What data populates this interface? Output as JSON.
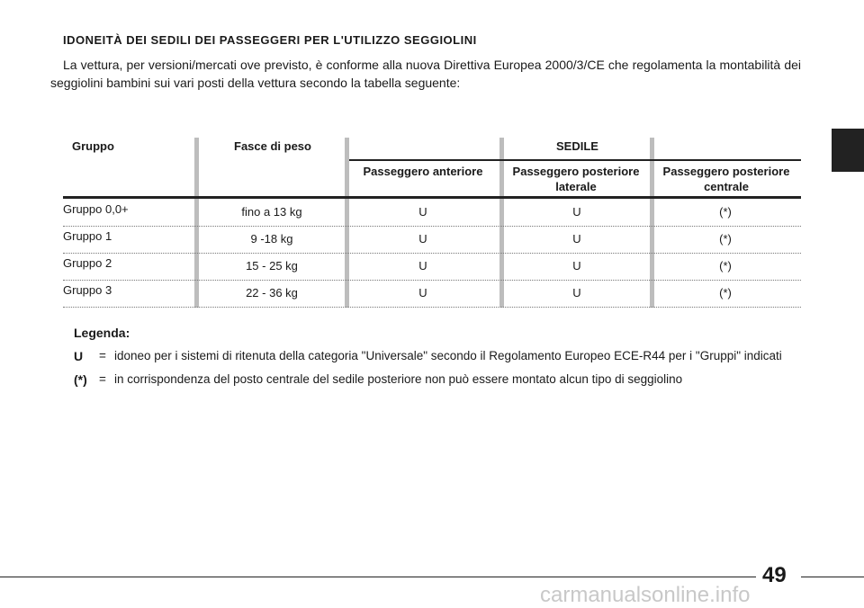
{
  "header": {
    "title": "IDONEITÀ DEI SEDILI DEI PASSEGGERI PER L'UTILIZZO SEGGIOLINI"
  },
  "intro": "La vettura, per versioni/mercati ove previsto, è conforme alla nuova Direttiva Europea 2000/3/CE che regolamenta la montabilità dei seggiolini bambini sui vari posti della vettura secondo la tabella seguente:",
  "table": {
    "columns": [
      "Gruppo",
      "Fasce di peso"
    ],
    "group_header": "SEDILE",
    "subcolumns": [
      "Passeggero anteriore",
      "Passeggero posteriore laterale",
      "Passeggero posteriore centrale"
    ],
    "rows": [
      [
        "Gruppo 0,0+",
        "fino a 13 kg",
        "U",
        "U",
        "(*)"
      ],
      [
        "Gruppo 1",
        "9 -18 kg",
        "U",
        "U",
        "(*)"
      ],
      [
        "Gruppo 2",
        "15 - 25 kg",
        "U",
        "U",
        "(*)"
      ],
      [
        "Gruppo 3",
        "22 - 36 kg",
        "U",
        "U",
        "(*)"
      ]
    ]
  },
  "legend": {
    "title": "Legenda:",
    "items": [
      {
        "symbol": "U",
        "separator": "=",
        "text": "idoneo per i sistemi di ritenuta della categoria \"Universale\" secondo il Regolamento Europeo ECE-R44 per i \"Gruppi\" indicati"
      },
      {
        "symbol": "(*)",
        "separator": "=",
        "text": "in corrispondenza del posto centrale del sedile posteriore non può essere montato alcun tipo di seggiolino"
      }
    ]
  },
  "page_number": "49",
  "watermark": "carmanualsonline.info"
}
